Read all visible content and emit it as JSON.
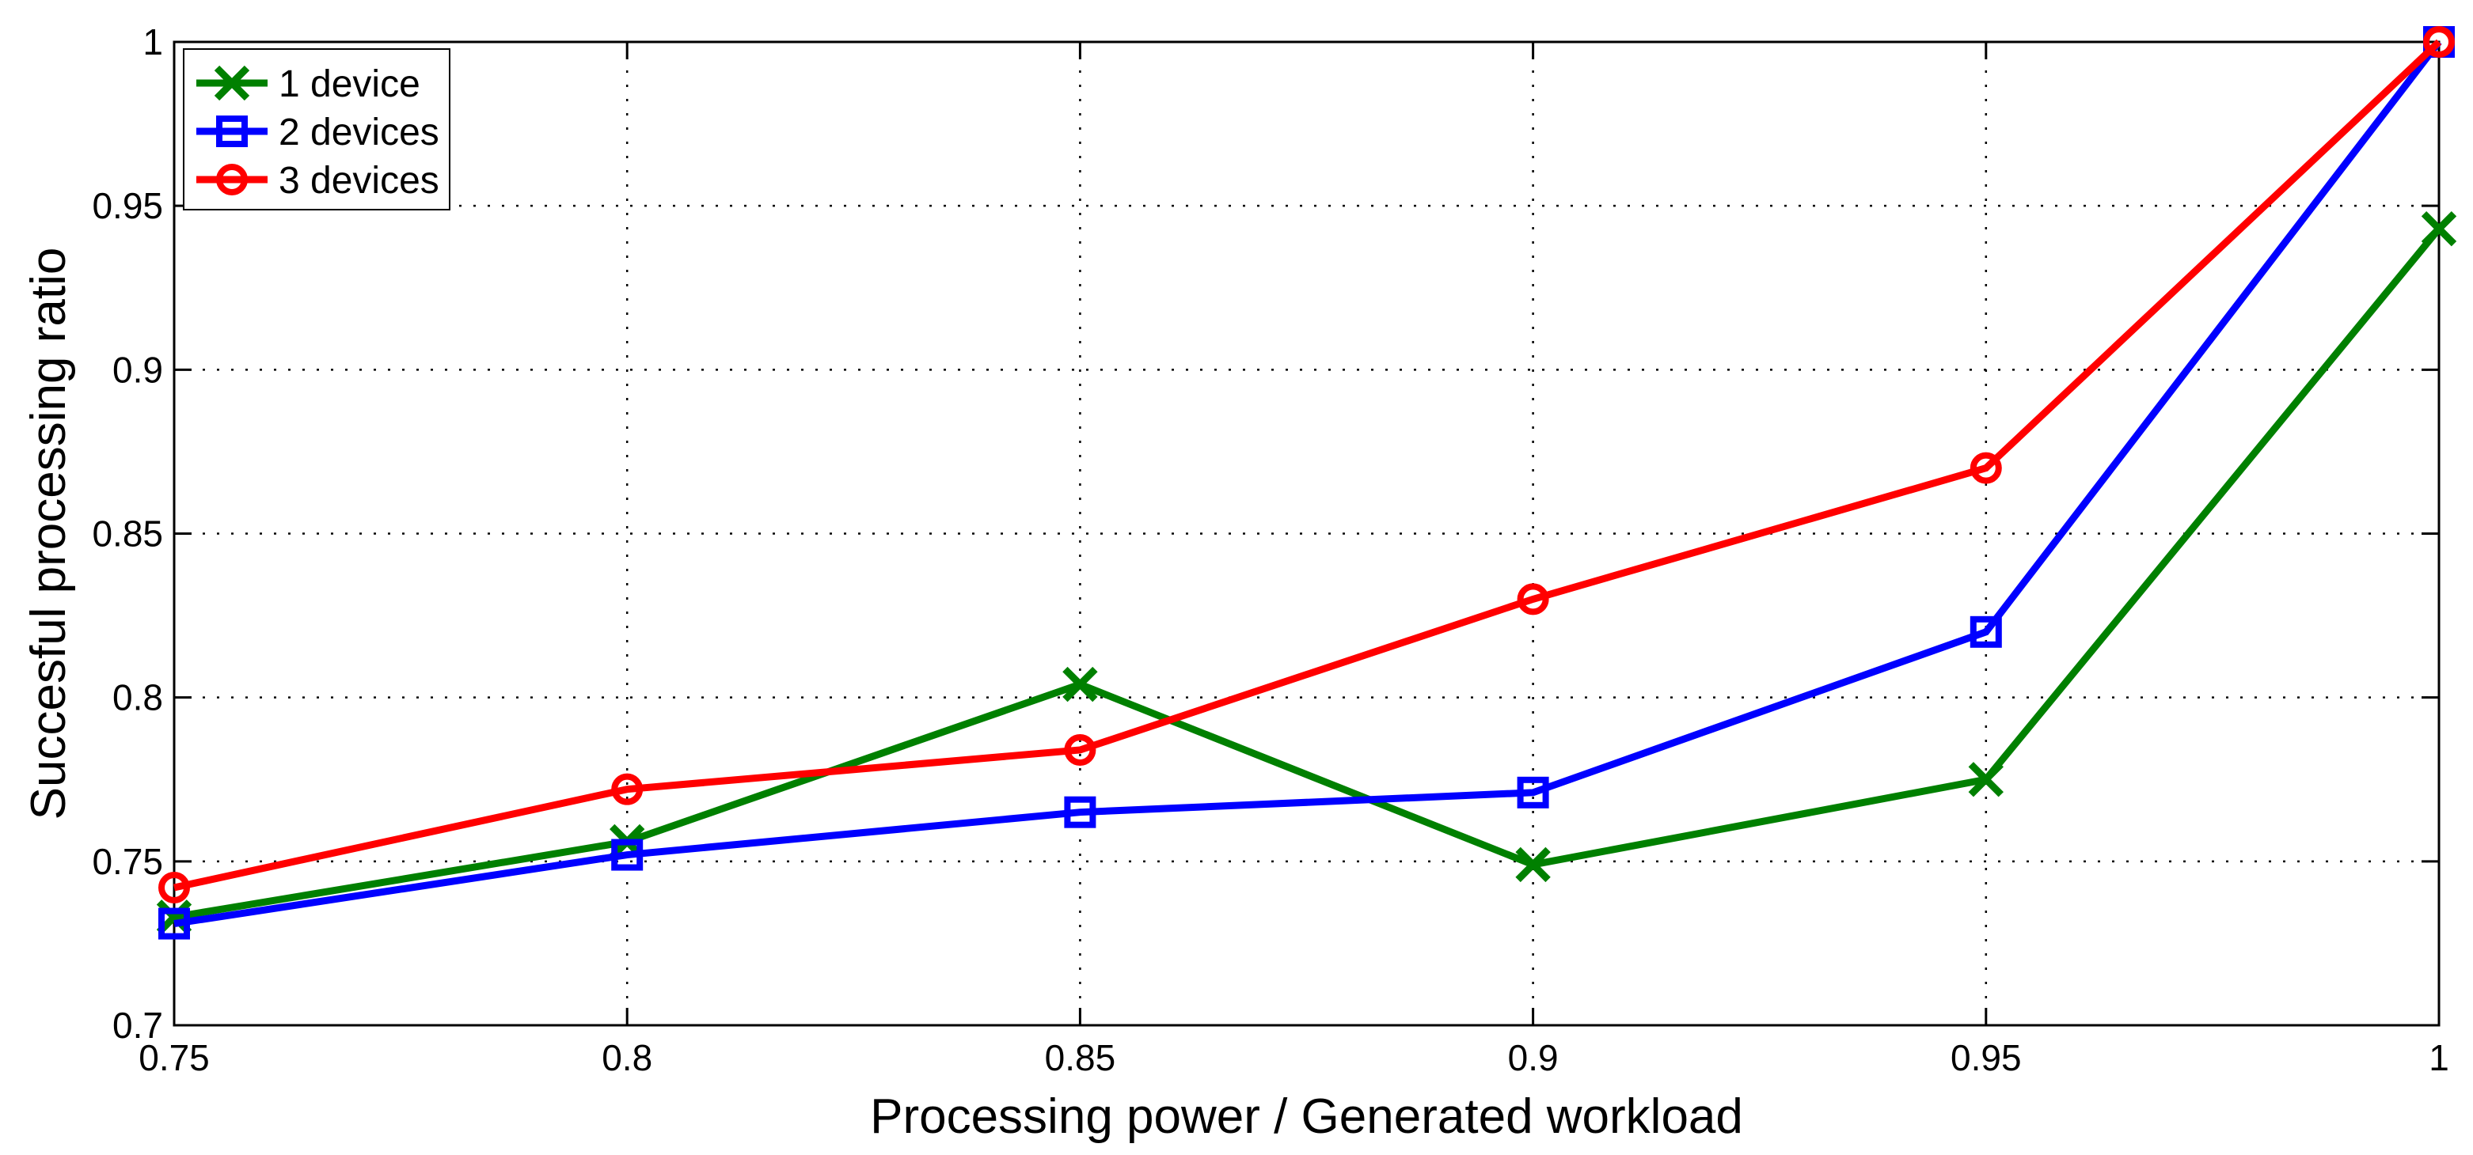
{
  "figure": {
    "background": "#ffffff"
  },
  "chart_data": {
    "type": "line",
    "title": "",
    "xlabel": "Processing power / Generated workload",
    "ylabel": "Succesful processing ratio",
    "x": [
      0.75,
      0.8,
      0.85,
      0.9,
      0.95,
      1
    ],
    "xlim": [
      0.75,
      1
    ],
    "ylim": [
      0.7,
      1
    ],
    "x_ticks": [
      0.75,
      0.8,
      0.85,
      0.9,
      0.95,
      1
    ],
    "x_tick_labels": [
      "0.75",
      "0.8",
      "0.85",
      "0.9",
      "0.95",
      "1"
    ],
    "y_ticks": [
      0.7,
      0.75,
      0.8,
      0.85,
      0.9,
      0.95,
      1
    ],
    "y_tick_labels": [
      "0.7",
      "0.75",
      "0.8",
      "0.85",
      "0.9",
      "0.95",
      "1"
    ],
    "grid": true,
    "grid_style": "dotted",
    "grid_color": "#000000",
    "axis_color": "#000000",
    "legend_position": "top-left",
    "legend": [
      "1 device",
      "2 devices",
      "3 devices"
    ],
    "series": [
      {
        "name": "1 device",
        "color": "#008000",
        "marker": "x",
        "values": [
          0.733,
          0.756,
          0.804,
          0.749,
          0.775,
          0.943
        ]
      },
      {
        "name": "2 devices",
        "color": "#0000ff",
        "marker": "square",
        "values": [
          0.731,
          0.752,
          0.765,
          0.771,
          0.82,
          1.0
        ]
      },
      {
        "name": "3 devices",
        "color": "#ff0000",
        "marker": "circle",
        "values": [
          0.742,
          0.772,
          0.784,
          0.83,
          0.87,
          1.0
        ]
      }
    ]
  }
}
